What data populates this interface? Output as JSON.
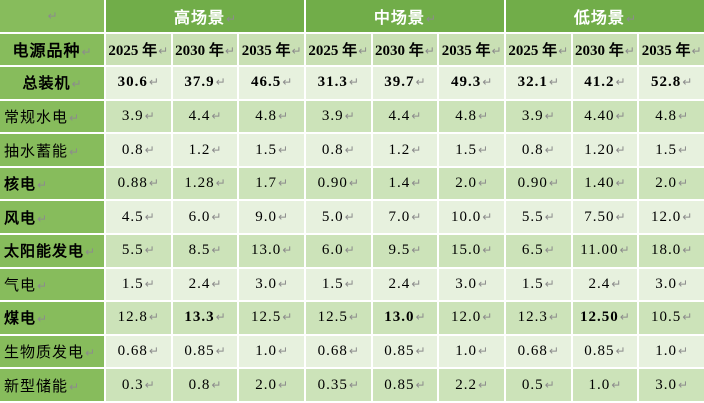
{
  "table": {
    "mark": "↵",
    "corner_text": "",
    "header_label": "电源品种",
    "scenarios": [
      "高场景",
      "中场景",
      "低场景"
    ],
    "years": [
      "2025 年",
      "2030 年",
      "2035 年"
    ],
    "rows": [
      {
        "label": "总装机",
        "bold_label": true,
        "center_label": true,
        "values": [
          "30.6",
          "37.9",
          "46.5",
          "31.3",
          "39.7",
          "49.3",
          "32.1",
          "41.2",
          "52.8"
        ],
        "bold_cols": [
          0,
          1,
          2,
          3,
          4,
          5,
          6,
          7,
          8
        ]
      },
      {
        "label": "常规水电",
        "bold_label": false,
        "center_label": false,
        "values": [
          "3.9",
          "4.4",
          "4.8",
          "3.9",
          "4.4",
          "4.8",
          "3.9",
          "4.40",
          "4.8"
        ],
        "bold_cols": []
      },
      {
        "label": "抽水蓄能",
        "bold_label": false,
        "center_label": false,
        "values": [
          "0.8",
          "1.2",
          "1.5",
          "0.8",
          "1.2",
          "1.5",
          "0.8",
          "1.20",
          "1.5"
        ],
        "bold_cols": []
      },
      {
        "label": "核电",
        "bold_label": true,
        "center_label": false,
        "values": [
          "0.88",
          "1.28",
          "1.7",
          "0.90",
          "1.4",
          "2.0",
          "0.90",
          "1.40",
          "2.0"
        ],
        "bold_cols": []
      },
      {
        "label": "风电",
        "bold_label": true,
        "center_label": false,
        "values": [
          "4.5",
          "6.0",
          "9.0",
          "5.0",
          "7.0",
          "10.0",
          "5.5",
          "7.50",
          "12.0"
        ],
        "bold_cols": []
      },
      {
        "label": "太阳能发电",
        "bold_label": true,
        "center_label": false,
        "values": [
          "5.5",
          "8.5",
          "13.0",
          "6.0",
          "9.5",
          "15.0",
          "6.5",
          "11.00",
          "18.0"
        ],
        "bold_cols": []
      },
      {
        "label": "气电",
        "bold_label": false,
        "center_label": false,
        "values": [
          "1.5",
          "2.4",
          "3.0",
          "1.5",
          "2.4",
          "3.0",
          "1.5",
          "2.4",
          "3.0"
        ],
        "bold_cols": []
      },
      {
        "label": "煤电",
        "bold_label": true,
        "center_label": false,
        "values": [
          "12.8",
          "13.3",
          "12.5",
          "12.5",
          "13.0",
          "12.0",
          "12.3",
          "12.50",
          "10.5"
        ],
        "bold_cols": [
          1,
          4,
          7
        ]
      },
      {
        "label": "生物质发电",
        "bold_label": false,
        "center_label": false,
        "values": [
          "0.68",
          "0.85",
          "1.0",
          "0.68",
          "0.85",
          "1.0",
          "0.68",
          "0.85",
          "1.0"
        ],
        "bold_cols": []
      },
      {
        "label": "新型储能",
        "bold_label": false,
        "center_label": false,
        "values": [
          "0.3",
          "0.8",
          "2.0",
          "0.35",
          "0.85",
          "2.2",
          "0.5",
          "1.0",
          "3.0"
        ],
        "bold_cols": []
      }
    ],
    "colors": {
      "scenario_header_bg": "#71AD49",
      "scenario_header_text": "#FFFFFF",
      "year_header_bg": "#C9E0B4",
      "label_col_bg": "#87BC5C",
      "row_light_bg": "#E7F1DE",
      "row_medium_bg": "#CCE3B9",
      "text": "#000000",
      "mark": "#8C8C8C"
    }
  }
}
